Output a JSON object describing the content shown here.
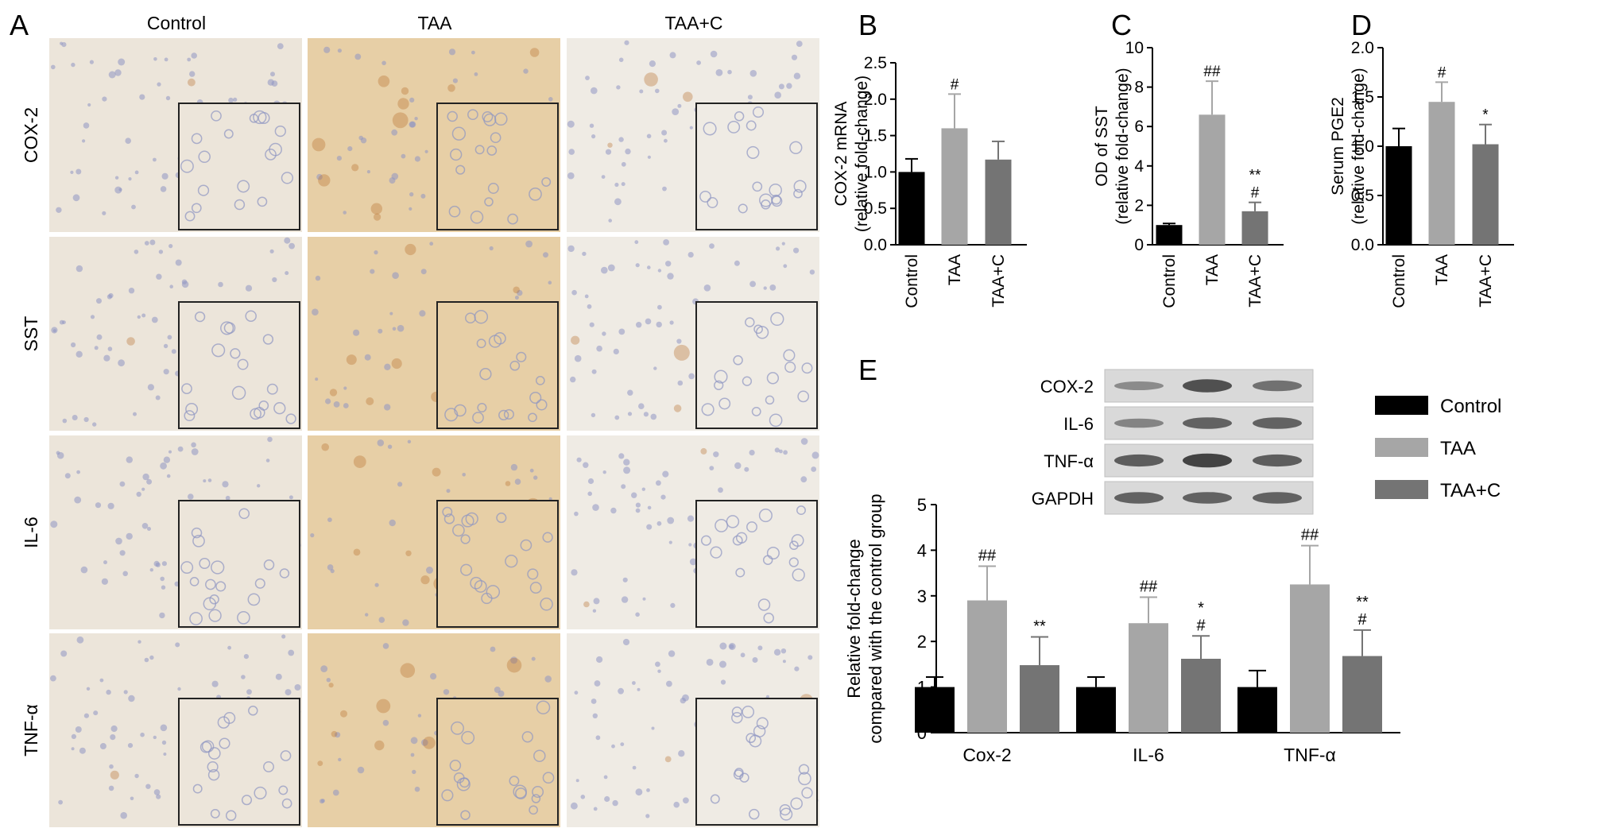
{
  "panel_letters": {
    "A": "A",
    "B": "B",
    "C": "C",
    "D": "D",
    "E": "E"
  },
  "panel_a": {
    "columns": [
      "Control",
      "TAA",
      "TAA+C"
    ],
    "rows": [
      "COX-2",
      "SST",
      "IL-6",
      "TNF-α"
    ],
    "tissue_colors": {
      "Control": "#ece5da",
      "TAA": "#e7cfa6",
      "TAA+C": "#efebe4",
      "nucleus": "#8f95c2",
      "stain": "#b86c2c"
    }
  },
  "western_blot": {
    "bands": [
      "COX-2",
      "IL-6",
      "TNF-α",
      "GAPDH"
    ],
    "intensity": [
      [
        0.25,
        0.7,
        0.45
      ],
      [
        0.3,
        0.55,
        0.55
      ],
      [
        0.6,
        0.8,
        0.6
      ],
      [
        0.55,
        0.55,
        0.55
      ]
    ]
  },
  "legend": [
    "Control",
    "TAA",
    "TAA+C"
  ],
  "colors": {
    "Control": "#000000",
    "TAA": "#a6a6a6",
    "TAA+C": "#747474"
  },
  "chart_data": [
    {
      "panel": "B",
      "type": "bar",
      "categories": [
        "Control",
        "TAA",
        "TAA+C"
      ],
      "values": [
        1.0,
        1.6,
        1.17
      ],
      "errors": [
        0.18,
        0.47,
        0.25
      ],
      "annotations": [
        "",
        "#",
        ""
      ],
      "ylabel_lines": [
        "COX-2 mRNA",
        "(relative fold-change)"
      ],
      "ylim": [
        0,
        2.5
      ],
      "yticks": [
        "0.0",
        "0.5",
        "1.0",
        "1.5",
        "2.0",
        "2.5"
      ]
    },
    {
      "panel": "C",
      "type": "bar",
      "categories": [
        "Control",
        "TAA",
        "TAA+C"
      ],
      "values": [
        1.0,
        6.6,
        1.7
      ],
      "errors": [
        0.08,
        1.7,
        0.45
      ],
      "annotations": [
        "",
        "##",
        "**\n#"
      ],
      "ylabel_lines": [
        "OD of SST",
        "(relative fold-change)"
      ],
      "ylim": [
        0,
        10
      ],
      "yticks": [
        "0",
        "2",
        "4",
        "6",
        "8",
        "10"
      ]
    },
    {
      "panel": "D",
      "type": "bar",
      "categories": [
        "Control",
        "TAA",
        "TAA+C"
      ],
      "values": [
        1.0,
        1.45,
        1.02
      ],
      "errors": [
        0.18,
        0.2,
        0.2
      ],
      "annotations": [
        "",
        "#",
        "*"
      ],
      "ylabel_lines": [
        "Serum PGE2",
        "(relative fold-change)"
      ],
      "ylim": [
        0,
        2.0
      ],
      "yticks": [
        "0.0",
        "0.5",
        "1.0",
        "1.5",
        "2.0"
      ]
    },
    {
      "panel": "E",
      "type": "bar",
      "categories": [
        "Cox-2",
        "IL-6",
        "TNF-α"
      ],
      "series": [
        {
          "name": "Control",
          "values": [
            1.0,
            1.0,
            1.0
          ],
          "errors": [
            0.22,
            0.22,
            0.36
          ],
          "annotations": [
            "",
            "",
            ""
          ]
        },
        {
          "name": "TAA",
          "values": [
            2.9,
            2.4,
            3.25
          ],
          "errors": [
            0.75,
            0.57,
            0.85
          ],
          "annotations": [
            "##",
            "##",
            "##"
          ]
        },
        {
          "name": "TAA+C",
          "values": [
            1.48,
            1.62,
            1.68
          ],
          "errors": [
            0.62,
            0.5,
            0.57
          ],
          "annotations": [
            "**",
            "*\n#",
            "**\n#"
          ]
        }
      ],
      "ylabel_lines": [
        "Relative fold-change",
        "compared with the control group"
      ],
      "ylim": [
        0,
        5
      ],
      "yticks": [
        "0",
        "1",
        "2",
        "3",
        "4",
        "5"
      ],
      "legend_position": "top-right"
    }
  ]
}
